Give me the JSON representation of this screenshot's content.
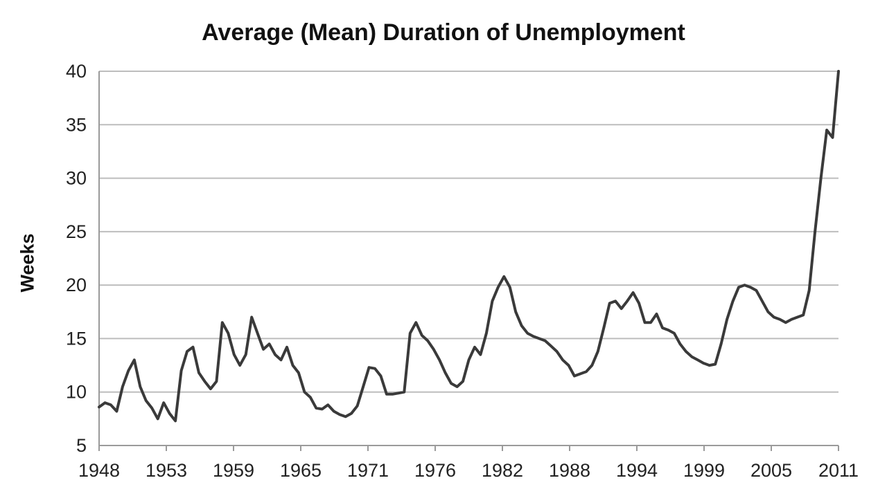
{
  "chart_data": {
    "type": "line",
    "title": "Average (Mean) Duration of Unemployment",
    "xlabel": "",
    "ylabel": "Weeks",
    "ylim": [
      5,
      40
    ],
    "xlim": [
      1948,
      2011
    ],
    "y_ticks": [
      5,
      10,
      15,
      20,
      25,
      30,
      35,
      40
    ],
    "x_tick_labels": [
      "1948",
      "1953",
      "1959",
      "1965",
      "1971",
      "1976",
      "1982",
      "1988",
      "1994",
      "1999",
      "2005",
      "2011"
    ],
    "grid": "horizontal",
    "line_color": "#3a3a3a",
    "series": [
      {
        "x": [
          1948.0,
          1948.5,
          1949.0,
          1949.5,
          1950.0,
          1950.5,
          1951.0,
          1951.5,
          1952.0,
          1952.5,
          1953.0,
          1953.5,
          1954.0,
          1954.5,
          1955.0,
          1955.5,
          1956.0,
          1956.5,
          1957.0,
          1957.5,
          1958.0,
          1958.5,
          1959.0,
          1959.5,
          1960.0,
          1960.5,
          1961.0,
          1961.5,
          1962.0,
          1962.5,
          1963.0,
          1963.5,
          1964.0,
          1964.5,
          1965.0,
          1965.5,
          1966.0,
          1966.5,
          1967.0,
          1967.5,
          1968.0,
          1968.5,
          1969.0,
          1969.5,
          1970.0,
          1970.5,
          1971.0,
          1971.5,
          1972.0,
          1972.5,
          1973.0,
          1973.5,
          1974.0,
          1974.5,
          1975.0,
          1975.5,
          1976.0,
          1976.5,
          1977.0,
          1977.5,
          1978.0,
          1978.5,
          1979.0,
          1979.5,
          1980.0,
          1980.5,
          1981.0,
          1981.5,
          1982.0,
          1982.5,
          1983.0,
          1983.5,
          1984.0,
          1984.5,
          1985.0,
          1985.5,
          1986.0,
          1986.5,
          1987.0,
          1987.5,
          1988.0,
          1988.5,
          1989.0,
          1989.5,
          1990.0,
          1990.5,
          1991.0,
          1991.5,
          1992.0,
          1992.5,
          1993.0,
          1993.5,
          1994.0,
          1994.5,
          1995.0,
          1995.5,
          1996.0,
          1996.5,
          1997.0,
          1997.5,
          1998.0,
          1998.5,
          1999.0,
          1999.5,
          2000.0,
          2000.5,
          2001.0,
          2001.5,
          2002.0,
          2002.5,
          2003.0,
          2003.5,
          2004.0,
          2004.5,
          2005.0,
          2005.5,
          2006.0,
          2006.5,
          2007.0,
          2007.5,
          2008.0,
          2008.5,
          2009.0,
          2009.5,
          2010.0,
          2010.5,
          2011.0
        ],
        "values": [
          8.6,
          9.0,
          8.8,
          8.2,
          10.5,
          12.0,
          13.0,
          10.5,
          9.2,
          8.5,
          7.5,
          9.0,
          8.0,
          7.3,
          12.0,
          13.8,
          14.2,
          11.8,
          11.0,
          10.3,
          11.0,
          16.5,
          15.5,
          13.5,
          12.5,
          13.5,
          17.0,
          15.5,
          14.0,
          14.5,
          13.5,
          13.0,
          14.2,
          12.5,
          11.8,
          10.0,
          9.5,
          8.5,
          8.4,
          8.8,
          8.2,
          7.9,
          7.7,
          8.0,
          8.7,
          10.5,
          12.3,
          12.2,
          11.5,
          9.8,
          9.8,
          9.9,
          10.0,
          15.5,
          16.5,
          15.3,
          14.8,
          14.0,
          13.0,
          11.8,
          10.8,
          10.5,
          11.0,
          13.0,
          14.2,
          13.5,
          15.5,
          18.5,
          19.8,
          20.8,
          19.8,
          17.5,
          16.2,
          15.5,
          15.2,
          15.0,
          14.8,
          14.3,
          13.8,
          13.0,
          12.5,
          11.5,
          11.7,
          11.9,
          12.5,
          13.8,
          16.0,
          18.3,
          18.5,
          17.8,
          18.5,
          19.3,
          18.3,
          16.5,
          16.5,
          17.3,
          16.0,
          15.8,
          15.5,
          14.5,
          13.8,
          13.3,
          13.0,
          12.7,
          12.5,
          12.6,
          14.5,
          16.8,
          18.5,
          19.8,
          20.0,
          19.8,
          19.5,
          18.5,
          17.5,
          17.0,
          16.8,
          16.5,
          16.8,
          17.0,
          17.2,
          19.5,
          25.0,
          30.0,
          34.5,
          33.8,
          40.0
        ]
      }
    ]
  }
}
